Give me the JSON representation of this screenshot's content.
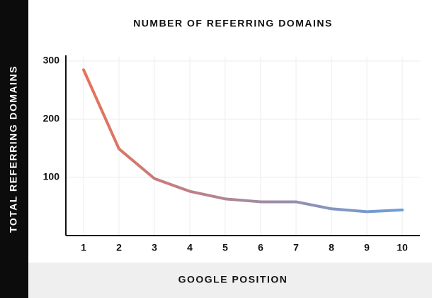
{
  "chart_data": {
    "type": "line",
    "title": "NUMBER OF REFERRING DOMAINS",
    "x_label": "GOOGLE POSITION",
    "y_label": "TOTAL REFERRING DOMAINS",
    "categories": [
      "1",
      "2",
      "3",
      "4",
      "5",
      "6",
      "7",
      "8",
      "9",
      "10"
    ],
    "values": [
      285,
      149,
      98,
      76,
      63,
      58,
      58,
      46,
      41,
      44
    ],
    "gradient": [
      "#e8705a",
      "#6a9fdc"
    ],
    "ylim": [
      0,
      300
    ],
    "yticks": [
      100,
      200,
      300
    ],
    "grid": true
  }
}
